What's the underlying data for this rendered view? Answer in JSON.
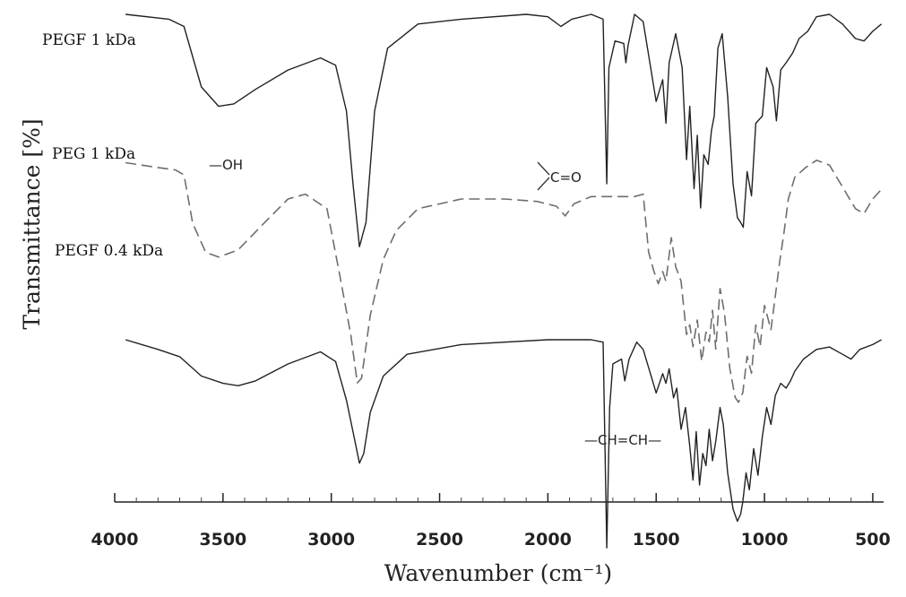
{
  "chart_data": {
    "type": "line",
    "title": "",
    "xlabel": "Wavenumber (cm⁻¹)",
    "ylabel": "Transmittance [%]",
    "xlim": [
      4000,
      450
    ],
    "x_reversed": true,
    "x_ticks": [
      4000,
      3500,
      3000,
      2500,
      2000,
      1500,
      1000,
      500
    ],
    "grid": false,
    "series": [
      {
        "name": "PEGF 1 kDa",
        "color": "#222222",
        "dash": "solid",
        "points": [
          [
            3950,
            100
          ],
          [
            3750,
            98
          ],
          [
            3680,
            95
          ],
          [
            3600,
            70
          ],
          [
            3520,
            62
          ],
          [
            3450,
            63
          ],
          [
            3350,
            69
          ],
          [
            3200,
            77
          ],
          [
            3050,
            82
          ],
          [
            2980,
            79
          ],
          [
            2930,
            60
          ],
          [
            2900,
            30
          ],
          [
            2870,
            4
          ],
          [
            2840,
            14
          ],
          [
            2800,
            60
          ],
          [
            2740,
            86
          ],
          [
            2600,
            96
          ],
          [
            2400,
            98
          ],
          [
            2100,
            100
          ],
          [
            2000,
            99
          ],
          [
            1940,
            95
          ],
          [
            1890,
            98
          ],
          [
            1800,
            100
          ],
          [
            1745,
            98
          ],
          [
            1728,
            30
          ],
          [
            1718,
            78
          ],
          [
            1690,
            89
          ],
          [
            1650,
            88
          ],
          [
            1640,
            80
          ],
          [
            1630,
            87
          ],
          [
            1600,
            100
          ],
          [
            1560,
            97
          ],
          [
            1500,
            64
          ],
          [
            1470,
            73
          ],
          [
            1455,
            55
          ],
          [
            1440,
            80
          ],
          [
            1410,
            92
          ],
          [
            1380,
            78
          ],
          [
            1360,
            40
          ],
          [
            1345,
            62
          ],
          [
            1325,
            28
          ],
          [
            1310,
            50
          ],
          [
            1295,
            20
          ],
          [
            1280,
            42
          ],
          [
            1260,
            38
          ],
          [
            1245,
            52
          ],
          [
            1232,
            58
          ],
          [
            1215,
            86
          ],
          [
            1195,
            92
          ],
          [
            1170,
            66
          ],
          [
            1145,
            30
          ],
          [
            1125,
            16
          ],
          [
            1110,
            14
          ],
          [
            1098,
            12
          ],
          [
            1080,
            35
          ],
          [
            1060,
            25
          ],
          [
            1040,
            55
          ],
          [
            1010,
            58
          ],
          [
            990,
            78
          ],
          [
            960,
            70
          ],
          [
            945,
            56
          ],
          [
            925,
            77
          ],
          [
            900,
            80
          ],
          [
            870,
            84
          ],
          [
            840,
            90
          ],
          [
            800,
            93
          ],
          [
            760,
            99
          ],
          [
            700,
            100
          ],
          [
            640,
            96
          ],
          [
            580,
            90
          ],
          [
            540,
            89
          ],
          [
            500,
            93
          ],
          [
            460,
            96
          ]
        ]
      },
      {
        "name": "PEG 1 kDa",
        "color": "#6e6e6e",
        "dash": "dashed",
        "points": [
          [
            3950,
            85
          ],
          [
            3800,
            83
          ],
          [
            3720,
            82
          ],
          [
            3680,
            80
          ],
          [
            3640,
            60
          ],
          [
            3580,
            48
          ],
          [
            3520,
            46
          ],
          [
            3430,
            49
          ],
          [
            3300,
            61
          ],
          [
            3200,
            70
          ],
          [
            3120,
            72
          ],
          [
            3020,
            66
          ],
          [
            2960,
            38
          ],
          [
            2910,
            14
          ],
          [
            2880,
            -6
          ],
          [
            2860,
            -4
          ],
          [
            2820,
            22
          ],
          [
            2760,
            45
          ],
          [
            2700,
            57
          ],
          [
            2600,
            66
          ],
          [
            2400,
            70
          ],
          [
            2200,
            70
          ],
          [
            2050,
            69
          ],
          [
            1960,
            67
          ],
          [
            1920,
            63
          ],
          [
            1880,
            68
          ],
          [
            1800,
            71
          ],
          [
            1700,
            71
          ],
          [
            1600,
            71
          ],
          [
            1560,
            72
          ],
          [
            1535,
            48
          ],
          [
            1510,
            40
          ],
          [
            1490,
            35
          ],
          [
            1470,
            40
          ],
          [
            1455,
            36
          ],
          [
            1430,
            54
          ],
          [
            1410,
            42
          ],
          [
            1385,
            36
          ],
          [
            1360,
            14
          ],
          [
            1345,
            18
          ],
          [
            1330,
            9
          ],
          [
            1310,
            20
          ],
          [
            1290,
            3
          ],
          [
            1270,
            15
          ],
          [
            1255,
            11
          ],
          [
            1240,
            24
          ],
          [
            1225,
            8
          ],
          [
            1205,
            33
          ],
          [
            1185,
            23
          ],
          [
            1160,
            0
          ],
          [
            1135,
            -12
          ],
          [
            1120,
            -14
          ],
          [
            1100,
            -10
          ],
          [
            1080,
            5
          ],
          [
            1060,
            -2
          ],
          [
            1040,
            18
          ],
          [
            1020,
            9
          ],
          [
            1000,
            26
          ],
          [
            970,
            16
          ],
          [
            950,
            30
          ],
          [
            930,
            44
          ],
          [
            910,
            56
          ],
          [
            890,
            70
          ],
          [
            860,
            79
          ],
          [
            810,
            83
          ],
          [
            760,
            86
          ],
          [
            700,
            84
          ],
          [
            640,
            75
          ],
          [
            580,
            66
          ],
          [
            540,
            64
          ],
          [
            500,
            70
          ],
          [
            460,
            74
          ]
        ]
      },
      {
        "name": "PEGF 0.4 kDa",
        "color": "#222222",
        "dash": "solid",
        "points": [
          [
            3950,
            50
          ],
          [
            3800,
            46
          ],
          [
            3700,
            43
          ],
          [
            3600,
            35
          ],
          [
            3500,
            32
          ],
          [
            3430,
            31
          ],
          [
            3350,
            33
          ],
          [
            3200,
            40
          ],
          [
            3050,
            45
          ],
          [
            2980,
            41
          ],
          [
            2930,
            25
          ],
          [
            2900,
            12
          ],
          [
            2870,
            -1
          ],
          [
            2850,
            3
          ],
          [
            2820,
            20
          ],
          [
            2760,
            35
          ],
          [
            2650,
            44
          ],
          [
            2400,
            48
          ],
          [
            2000,
            50
          ],
          [
            1800,
            50
          ],
          [
            1745,
            49
          ],
          [
            1728,
            -36
          ],
          [
            1715,
            22
          ],
          [
            1700,
            40
          ],
          [
            1660,
            42
          ],
          [
            1645,
            33
          ],
          [
            1625,
            42
          ],
          [
            1590,
            49
          ],
          [
            1560,
            46
          ],
          [
            1520,
            34
          ],
          [
            1500,
            28
          ],
          [
            1470,
            36
          ],
          [
            1455,
            32
          ],
          [
            1440,
            38
          ],
          [
            1420,
            26
          ],
          [
            1405,
            30
          ],
          [
            1385,
            13
          ],
          [
            1365,
            22
          ],
          [
            1345,
            6
          ],
          [
            1330,
            -8
          ],
          [
            1315,
            12
          ],
          [
            1300,
            -10
          ],
          [
            1285,
            3
          ],
          [
            1270,
            -2
          ],
          [
            1255,
            13
          ],
          [
            1240,
            0
          ],
          [
            1225,
            8
          ],
          [
            1205,
            22
          ],
          [
            1190,
            15
          ],
          [
            1170,
            -5
          ],
          [
            1145,
            -20
          ],
          [
            1125,
            -25
          ],
          [
            1110,
            -22
          ],
          [
            1100,
            -17
          ],
          [
            1085,
            -5
          ],
          [
            1070,
            -12
          ],
          [
            1050,
            5
          ],
          [
            1030,
            -6
          ],
          [
            1010,
            10
          ],
          [
            990,
            22
          ],
          [
            970,
            15
          ],
          [
            950,
            27
          ],
          [
            925,
            32
          ],
          [
            900,
            30
          ],
          [
            880,
            33
          ],
          [
            860,
            37
          ],
          [
            820,
            42
          ],
          [
            760,
            46
          ],
          [
            700,
            47
          ],
          [
            640,
            44
          ],
          [
            600,
            42
          ],
          [
            560,
            46
          ],
          [
            500,
            48
          ],
          [
            460,
            50
          ]
        ]
      }
    ],
    "annotations": [
      {
        "text": "—OH"
      },
      {
        "text": "C=O"
      },
      {
        "text": "—CH=CH—"
      }
    ]
  }
}
